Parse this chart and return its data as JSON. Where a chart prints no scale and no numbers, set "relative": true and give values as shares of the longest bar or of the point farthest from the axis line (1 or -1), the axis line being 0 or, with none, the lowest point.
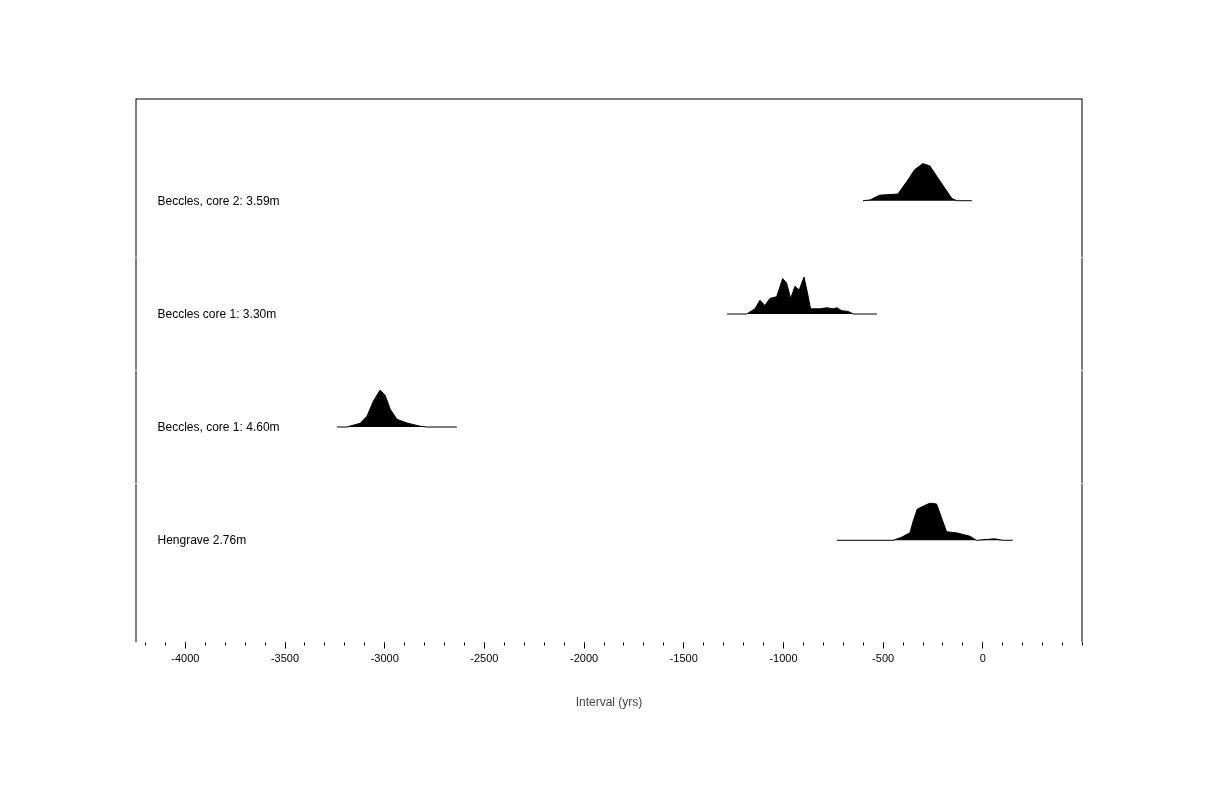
{
  "chart_data": [
    {
      "type": "area",
      "relative": true,
      "xlim": [
        -4250,
        500
      ],
      "xticks": [
        -4000,
        -3500,
        -3000,
        -2500,
        -2000,
        -1500,
        -1000,
        -500,
        0
      ],
      "grid": false,
      "tick_labels": false,
      "series": [
        {
          "name": "Beccles, core 2: 3.59m",
          "color": "#000000",
          "x": [
            -601,
            -566,
            -517,
            -426,
            -381,
            -341,
            -301,
            -266,
            -231,
            -191,
            -155,
            -130,
            -55
          ],
          "values": [
            0,
            0.02,
            0.15,
            0.18,
            0.52,
            0.84,
            1.0,
            0.94,
            0.66,
            0.34,
            0.06,
            0,
            0
          ]
        }
      ]
    },
    {
      "type": "area",
      "relative": true,
      "xlim": [
        -4250,
        500
      ],
      "xticks": [
        -4000,
        -3500,
        -3000,
        -2500,
        -2000,
        -1500,
        -1000,
        -500,
        0
      ],
      "grid": false,
      "tick_labels": false,
      "series": [
        {
          "name": "Beccles core 1: 3.30m",
          "color": "#000000",
          "x": [
            -1283,
            -1184,
            -1143,
            -1118,
            -1093,
            -1068,
            -1034,
            -1004,
            -984,
            -964,
            -942,
            -921,
            -897,
            -881,
            -864,
            -817,
            -783,
            -750,
            -733,
            -708,
            -675,
            -650,
            -531
          ],
          "values": [
            0,
            0,
            0.14,
            0.37,
            0.23,
            0.42,
            0.47,
            0.96,
            0.84,
            0.42,
            0.75,
            0.65,
            1.0,
            0.61,
            0.14,
            0.14,
            0.17,
            0.14,
            0.17,
            0.09,
            0.07,
            0,
            0
          ]
        }
      ]
    },
    {
      "type": "area",
      "relative": true,
      "xlim": [
        -4250,
        500
      ],
      "xticks": [
        -4000,
        -3500,
        -3000,
        -2500,
        -2000,
        -1500,
        -1000,
        -500,
        0
      ],
      "grid": false,
      "tick_labels": false,
      "series": [
        {
          "name": "Beccles, core 1: 4.60m",
          "color": "#000000",
          "x": [
            -3240,
            -3190,
            -3123,
            -3089,
            -3056,
            -3023,
            -2998,
            -2972,
            -2939,
            -2889,
            -2822,
            -2789,
            -2638
          ],
          "values": [
            0,
            0,
            0.1,
            0.29,
            0.71,
            1.0,
            0.86,
            0.48,
            0.21,
            0.11,
            0.02,
            0,
            0
          ]
        }
      ]
    },
    {
      "type": "area",
      "relative": true,
      "xlabel": "Interval (yrs)",
      "xlim": [
        -4250,
        500
      ],
      "xticks": [
        -4000,
        -3500,
        -3000,
        -2500,
        -2000,
        -1500,
        -1000,
        -500,
        0
      ],
      "grid": false,
      "tick_labels": "x",
      "series": [
        {
          "name": "Hengrave 2.76m",
          "color": "#000000",
          "x": [
            -732,
            -450,
            -408,
            -366,
            -349,
            -329,
            -291,
            -266,
            -232,
            -207,
            -182,
            -132,
            -65,
            -32,
            60,
            100,
            150
          ],
          "values": [
            0,
            0,
            0.08,
            0.2,
            0.52,
            0.84,
            0.94,
            1.0,
            0.98,
            0.61,
            0.23,
            0.2,
            0.11,
            0,
            0.04,
            0,
            0
          ]
        }
      ]
    }
  ]
}
